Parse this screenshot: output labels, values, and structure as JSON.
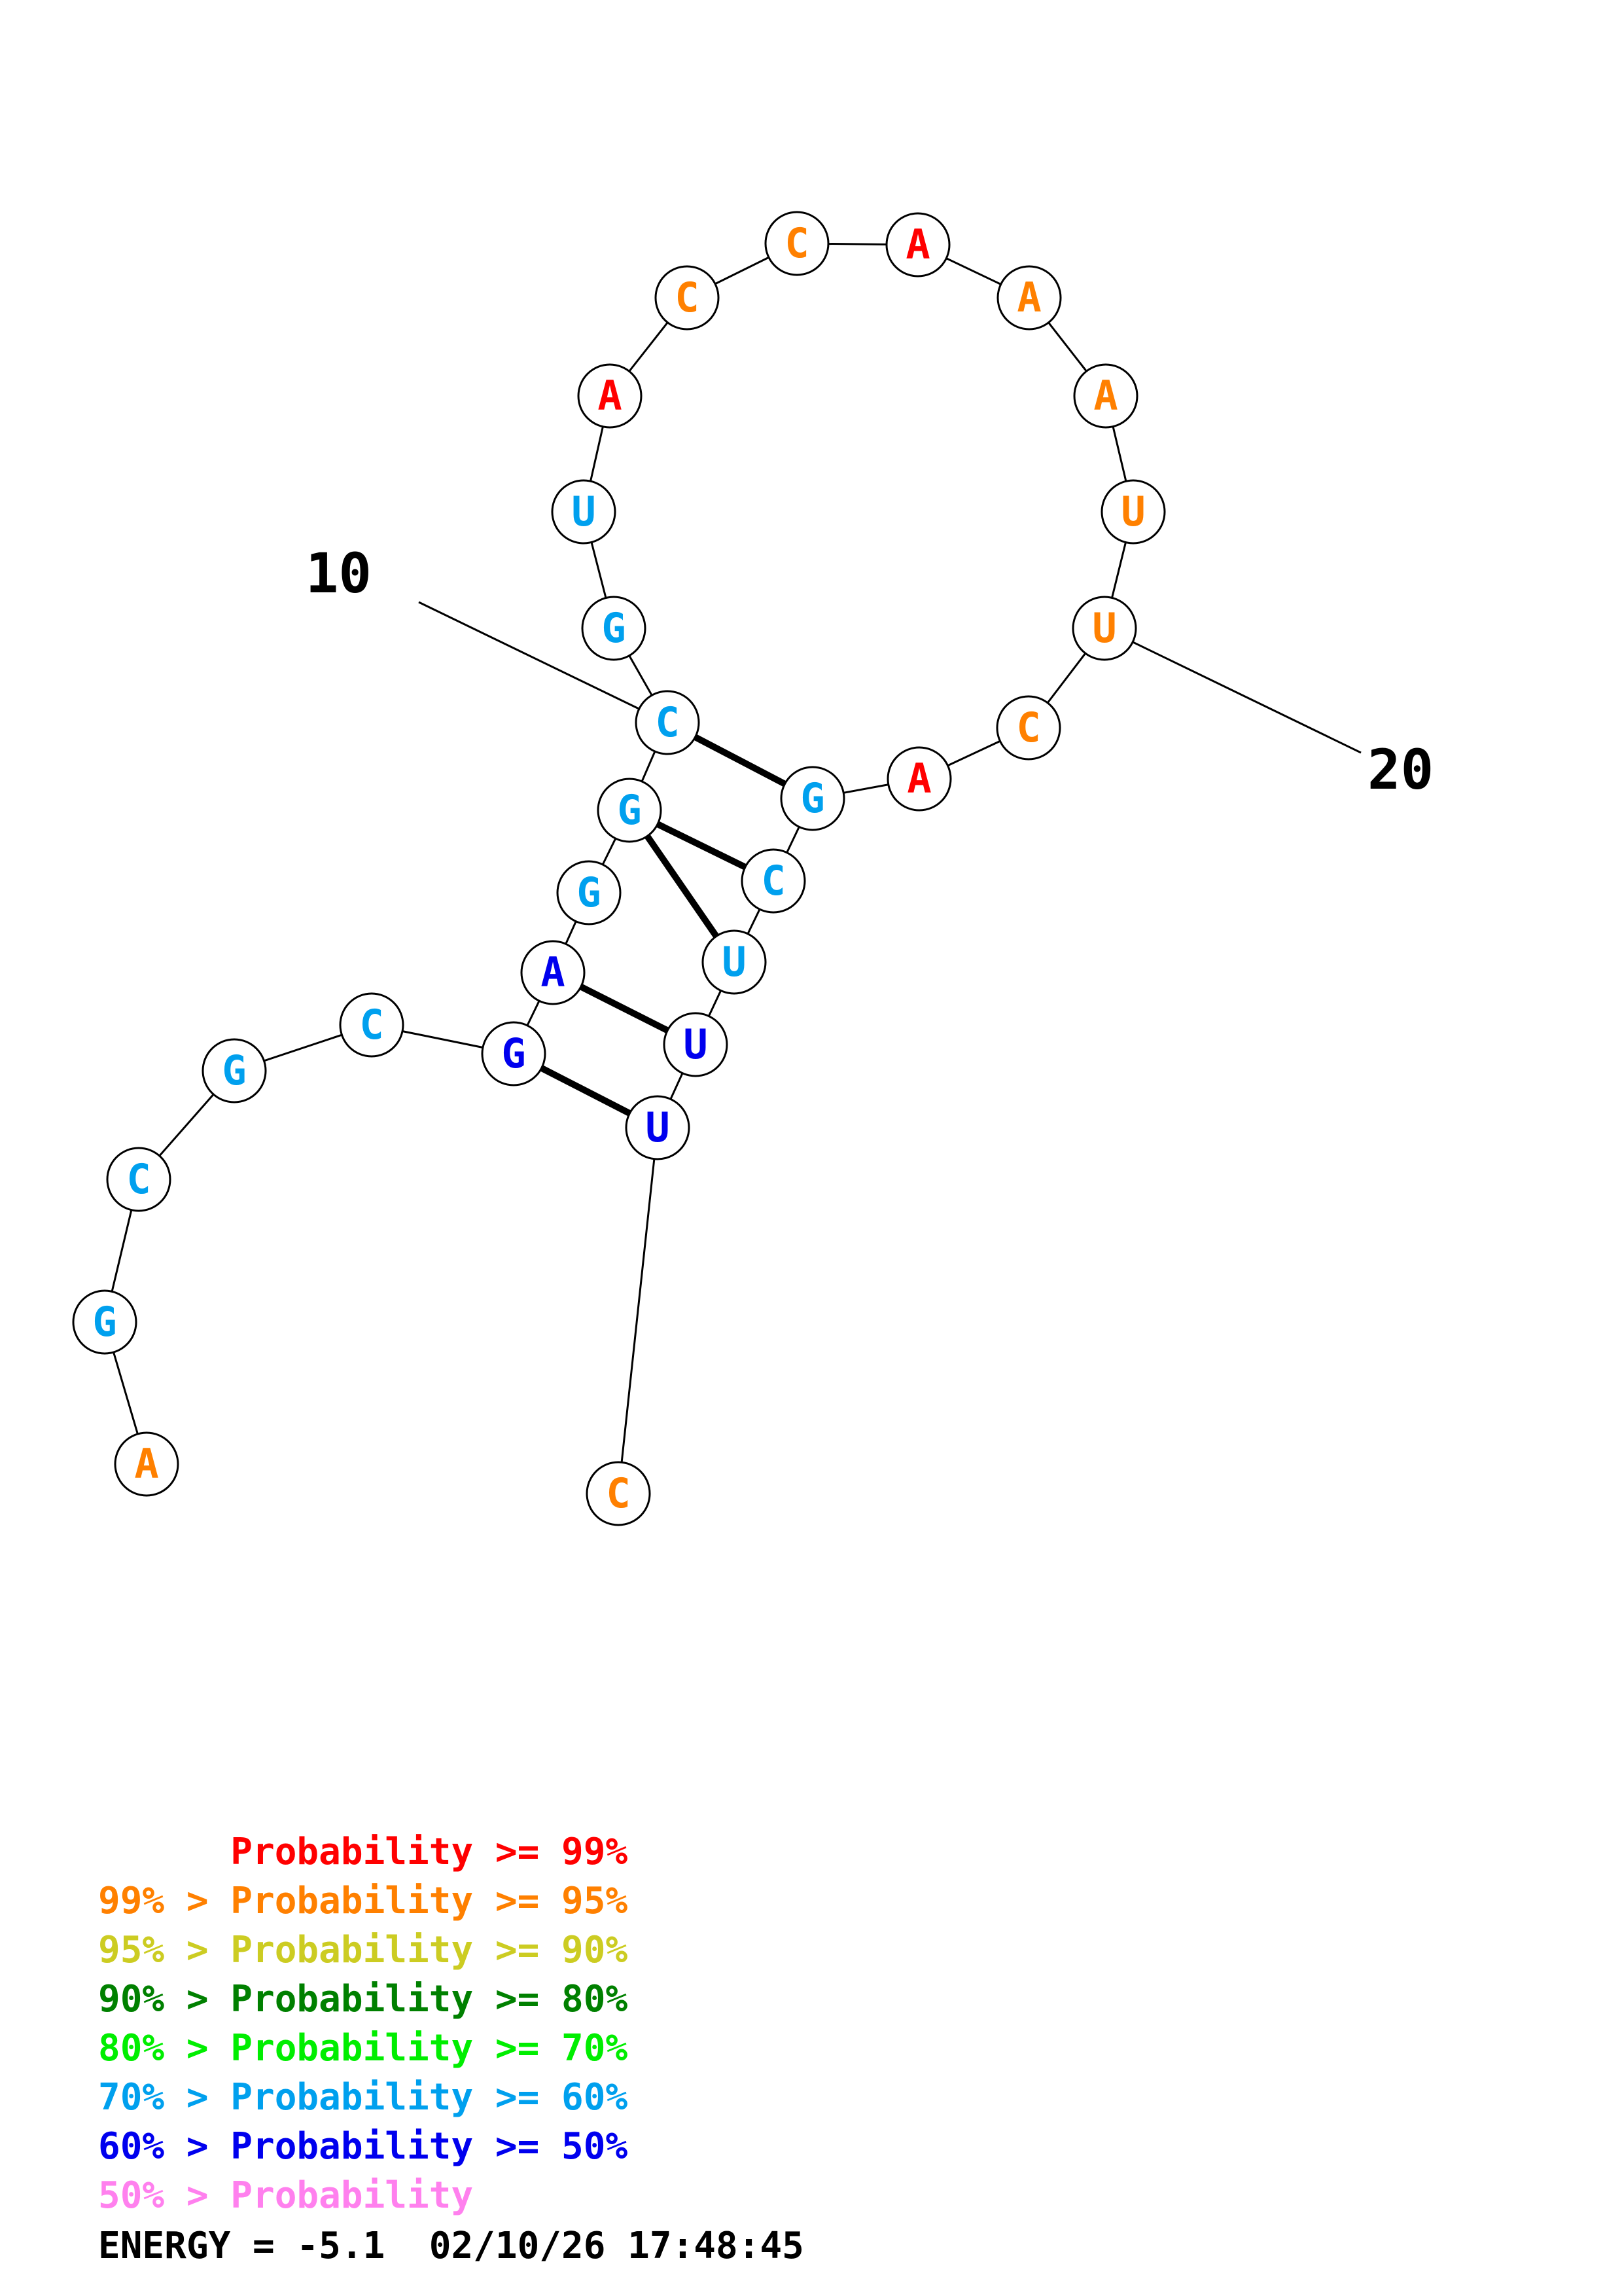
{
  "colors": {
    "p99": "#ff0000",
    "p95": "#ff8000",
    "p90": "#cccc22",
    "p80": "#008000",
    "p70": "#00ee00",
    "p60": "#00a0ee",
    "p50": "#0000ee",
    "p00": "#ff80ee"
  },
  "structure": {
    "nucleotides": [
      {
        "base": "A",
        "prob": "p95"
      },
      {
        "base": "G",
        "prob": "p60"
      },
      {
        "base": "C",
        "prob": "p60"
      },
      {
        "base": "G",
        "prob": "p60"
      },
      {
        "base": "C",
        "prob": "p60"
      },
      {
        "base": "G",
        "prob": "p50"
      },
      {
        "base": "A",
        "prob": "p50"
      },
      {
        "base": "G",
        "prob": "p60"
      },
      {
        "base": "G",
        "prob": "p60"
      },
      {
        "base": "C",
        "prob": "p60"
      },
      {
        "base": "G",
        "prob": "p60"
      },
      {
        "base": "U",
        "prob": "p60"
      },
      {
        "base": "A",
        "prob": "p99"
      },
      {
        "base": "C",
        "prob": "p95"
      },
      {
        "base": "C",
        "prob": "p95"
      },
      {
        "base": "A",
        "prob": "p99"
      },
      {
        "base": "A",
        "prob": "p95"
      },
      {
        "base": "A",
        "prob": "p95"
      },
      {
        "base": "U",
        "prob": "p95"
      },
      {
        "base": "U",
        "prob": "p95"
      },
      {
        "base": "C",
        "prob": "p95"
      },
      {
        "base": "A",
        "prob": "p99"
      },
      {
        "base": "G",
        "prob": "p60"
      },
      {
        "base": "C",
        "prob": "p60"
      },
      {
        "base": "U",
        "prob": "p60"
      },
      {
        "base": "U",
        "prob": "p50"
      },
      {
        "base": "U",
        "prob": "p50"
      },
      {
        "base": "C",
        "prob": "p95"
      }
    ],
    "pairs": [
      [
        6,
        27
      ],
      [
        7,
        26
      ],
      [
        9,
        25
      ],
      [
        9,
        24
      ],
      [
        10,
        23
      ]
    ],
    "index_labels": [
      {
        "number": "10",
        "nucleotide": 10
      },
      {
        "number": "20",
        "nucleotide": 20
      }
    ]
  },
  "legend": [
    {
      "text": "      Probability >= 99%",
      "color": "p99"
    },
    {
      "text": "99% > Probability >= 95%",
      "color": "p95"
    },
    {
      "text": "95% > Probability >= 90%",
      "color": "p90"
    },
    {
      "text": "90% > Probability >= 80%",
      "color": "p80"
    },
    {
      "text": "80% > Probability >= 70%",
      "color": "p70"
    },
    {
      "text": "70% > Probability >= 60%",
      "color": "p60"
    },
    {
      "text": "60% > Probability >= 50%",
      "color": "p50"
    },
    {
      "text": "50% > Probability",
      "color": "p00"
    }
  ],
  "energy_line": "ENERGY = -5.1  02/10/26 17:48:45"
}
